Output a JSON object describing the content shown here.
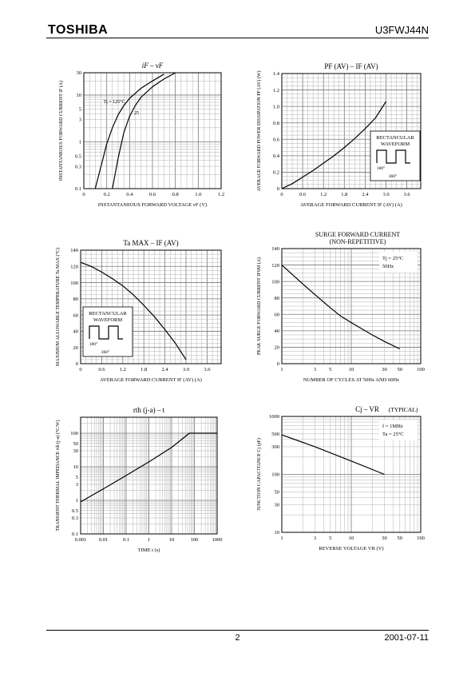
{
  "header": {
    "brand": "TOSHIBA",
    "part_number": "U3FWJ44N"
  },
  "footer": {
    "page_number": "2",
    "date": "2001-07-11"
  },
  "colors": {
    "ink": "#000000",
    "grid": "#b0b0b0",
    "background": "#ffffff"
  },
  "chart_data": [
    {
      "id": "if_vf",
      "type": "line",
      "title": "iF – vF",
      "xlabel": "INSTANTANEOUS FORWARD VOLTAGE vF (V)",
      "ylabel": "INSTANTANEOUS FORWARD CURRENT iF (A)",
      "xscale": "linear",
      "yscale": "log",
      "xlim": [
        0,
        1.2
      ],
      "ylim": [
        0.1,
        30
      ],
      "xticks": [
        0,
        0.2,
        0.4,
        0.6,
        0.8,
        1.0,
        1.2
      ],
      "yticks": [
        0.1,
        0.3,
        0.5,
        1,
        3,
        5,
        10,
        30
      ],
      "xtick_labels": [
        "0",
        "0.2",
        "0.4",
        "0.6",
        "0.8",
        "1.0",
        "1.2"
      ],
      "ytick_labels": [
        "0.1",
        "0.3",
        "0.5",
        "1",
        "3",
        "5",
        "10",
        "30"
      ],
      "annotations": [
        "Tj = 125°C",
        "25"
      ],
      "series": [
        {
          "name": "Tj = 125°C",
          "x": [
            0.1,
            0.15,
            0.2,
            0.25,
            0.3,
            0.35,
            0.4,
            0.5,
            0.6,
            0.7
          ],
          "y": [
            0.1,
            0.3,
            0.9,
            2.0,
            3.8,
            6.0,
            8.5,
            14,
            20,
            28
          ]
        },
        {
          "name": "25",
          "x": [
            0.25,
            0.3,
            0.35,
            0.4,
            0.45,
            0.5,
            0.6,
            0.7,
            0.8
          ],
          "y": [
            0.1,
            0.45,
            1.6,
            3.5,
            6.0,
            9.0,
            15,
            22,
            30
          ]
        }
      ]
    },
    {
      "id": "pf_if",
      "type": "line",
      "title": "PF (AV) – IF (AV)",
      "xlabel": "AVERAGE FORWARD CURRENT IF (AV) (A)",
      "ylabel": "AVERAGE FORWARD POWER DISSIPATION PF (AV) (W)",
      "xscale": "linear",
      "yscale": "linear",
      "xlim": [
        0,
        4.0
      ],
      "ylim": [
        0,
        1.4
      ],
      "xticks": [
        0,
        0.6,
        1.2,
        1.8,
        2.4,
        3.0,
        3.6
      ],
      "yticks": [
        0,
        0.2,
        0.4,
        0.6,
        0.8,
        1.0,
        1.2,
        1.4
      ],
      "xtick_labels": [
        "0",
        "0.6",
        "1.2",
        "1.8",
        "2.4",
        "3.0",
        "3.6"
      ],
      "ytick_labels": [
        "0",
        "0.2",
        "0.4",
        "0.6",
        "0.8",
        "1.0",
        "1.2",
        "1.4"
      ],
      "inset_text": [
        "RECTANCULAR",
        "WAVEFORM",
        "180°",
        "360°"
      ],
      "series": [
        {
          "x": [
            0,
            0.3,
            0.6,
            0.9,
            1.2,
            1.5,
            1.8,
            2.1,
            2.4,
            2.7,
            3.0
          ],
          "y": [
            0,
            0.06,
            0.14,
            0.22,
            0.31,
            0.4,
            0.5,
            0.61,
            0.73,
            0.86,
            1.06
          ]
        }
      ]
    },
    {
      "id": "ta_if",
      "type": "line",
      "title": "Ta MAX – IF (AV)",
      "xlabel": "AVERAGE FORWARD CURRENT IF (AV) (A)",
      "ylabel": "MAXIMUM ALLOWABLE TEMPERATURE Ta MAX (°C)",
      "xscale": "linear",
      "yscale": "linear",
      "xlim": [
        0,
        4.0
      ],
      "ylim": [
        0,
        140
      ],
      "xticks": [
        0,
        0.6,
        1.2,
        1.8,
        2.4,
        3.0,
        3.6
      ],
      "yticks": [
        0,
        20,
        40,
        60,
        80,
        100,
        120,
        140
      ],
      "xtick_labels": [
        "0",
        "0.6",
        "1.2",
        "1.8",
        "2.4",
        "3.0",
        "3.6"
      ],
      "ytick_labels": [
        "0",
        "20",
        "40",
        "60",
        "80",
        "100",
        "120",
        "140"
      ],
      "inset_text": [
        "RECTANCULAR",
        "WAVEFORM",
        "180°",
        "360°"
      ],
      "series": [
        {
          "x": [
            0,
            0.3,
            0.6,
            0.9,
            1.2,
            1.5,
            1.8,
            2.1,
            2.4,
            2.7,
            3.0
          ],
          "y": [
            125,
            120,
            113,
            105,
            96,
            85,
            72,
            58,
            42,
            25,
            5
          ]
        }
      ]
    },
    {
      "id": "ifsm_cycles",
      "type": "line",
      "title": "SURGE FORWARD CURRENT",
      "subtitle": "(NON-REPETITIVE)",
      "xlabel": "NUMBER OF CYCLES AT 50Hz AND 60Hz",
      "ylabel": "PEAK SURGE FORWARD CURRENT IFSM (A)",
      "xscale": "log",
      "yscale": "linear",
      "xlim": [
        1,
        100
      ],
      "ylim": [
        0,
        140
      ],
      "xticks": [
        1,
        3,
        5,
        10,
        30,
        50,
        100
      ],
      "yticks": [
        0,
        20,
        40,
        60,
        80,
        100,
        120,
        140
      ],
      "xtick_labels": [
        "1",
        "3",
        "5",
        "10",
        "30",
        "50",
        "100"
      ],
      "ytick_labels": [
        "0",
        "20",
        "40",
        "60",
        "80",
        "100",
        "120",
        "140"
      ],
      "legend_text": [
        "Tj = 25°C",
        "50Hz"
      ],
      "series": [
        {
          "x": [
            1,
            2,
            3,
            5,
            7,
            10,
            20,
            30,
            50
          ],
          "y": [
            120,
            97,
            84,
            68,
            58,
            50,
            35,
            27,
            18
          ]
        }
      ]
    },
    {
      "id": "rth_t",
      "type": "line",
      "title": "rth (j-a) – t",
      "xlabel": "TIME t (s)",
      "ylabel": "TRANSIENT THERMAL IMPEDANCE rth (j-a) (°C/W)",
      "xscale": "log",
      "yscale": "log",
      "xlim": [
        0.001,
        1000
      ],
      "ylim": [
        0.1,
        300
      ],
      "xticks": [
        0.001,
        0.01,
        0.1,
        1,
        10,
        100,
        1000
      ],
      "yticks": [
        0.1,
        0.3,
        0.5,
        1,
        3,
        5,
        10,
        30,
        50,
        100
      ],
      "xtick_labels": [
        "0.001",
        "0.01",
        "0.1",
        "1",
        "10",
        "100",
        "1000"
      ],
      "ytick_labels": [
        "0.1",
        "0.3",
        "0.5",
        "1",
        "3",
        "5",
        "10",
        "30",
        "50",
        "100"
      ],
      "series": [
        {
          "x": [
            0.001,
            0.01,
            0.1,
            1,
            10,
            60,
            1000
          ],
          "y": [
            0.9,
            2.2,
            5.5,
            14,
            38,
            100,
            100
          ]
        }
      ]
    },
    {
      "id": "cj_vr",
      "type": "line",
      "title": "Cj – VR",
      "subtitle": "(TYPICAL)",
      "xlabel": "REVERSE VOLTAGE VR (V)",
      "ylabel": "JUNCTION CAPACITANCE Cj (pF)",
      "xscale": "log",
      "yscale": "log",
      "xlim": [
        1,
        100
      ],
      "ylim": [
        10,
        1000
      ],
      "xticks": [
        1,
        3,
        5,
        10,
        30,
        50,
        100
      ],
      "yticks": [
        10,
        30,
        50,
        100,
        300,
        500,
        1000
      ],
      "xtick_labels": [
        "1",
        "3",
        "5",
        "10",
        "30",
        "50",
        "100"
      ],
      "ytick_labels": [
        "10",
        "30",
        "50",
        "100",
        "300",
        "500",
        "1000"
      ],
      "legend_text": [
        "f = 1MHz",
        "Ta = 25°C"
      ],
      "series": [
        {
          "x": [
            1,
            3,
            10,
            30
          ],
          "y": [
            480,
            300,
            170,
            100
          ]
        }
      ]
    }
  ]
}
